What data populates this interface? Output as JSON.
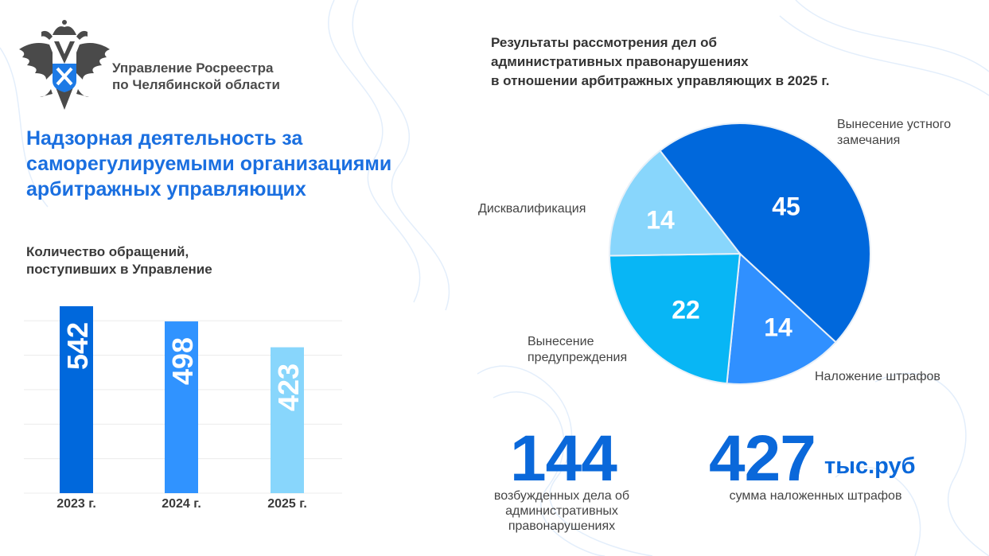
{
  "organization": {
    "line1": "Управление Росреестра",
    "line2": "по Челябинской области"
  },
  "header": {
    "title_lines": [
      "Надзорная деятельность за",
      "саморегулируемыми организациями",
      "арбитражных управляющих"
    ]
  },
  "colors": {
    "accent": "#1a6fe0",
    "dark_blue": "#0068dc",
    "mid_blue": "#3093ff",
    "cyan": "#08b6f5",
    "light_blue": "#88d6fc"
  },
  "chart_data": [
    {
      "type": "bar",
      "title": "Количество обращений, поступивших в Управление",
      "title_lines": [
        "Количество обращений,",
        "поступивших в Управление"
      ],
      "categories": [
        "2023 г.",
        "2024 г.",
        "2025 г."
      ],
      "values": [
        542,
        498,
        423
      ],
      "bar_colors": [
        "#0068dc",
        "#3093ff",
        "#88d6fc"
      ],
      "ylim": [
        0,
        542
      ],
      "grid": true,
      "data_labels": [
        "542",
        "498",
        "423"
      ]
    },
    {
      "type": "pie",
      "title": "Результаты рассмотрения дел об административных правонарушениях в отношении арбитражных управляющих в 2025 г.",
      "title_lines": [
        "Результаты рассмотрения дел об",
        "административных правонарушениях",
        "в отношении арбитражных управляющих в 2025 г."
      ],
      "slices": [
        {
          "label": "Вынесение устного замечания",
          "label_lines": [
            "Вынесение устного",
            "замечания"
          ],
          "value": 45,
          "color": "#0068dc"
        },
        {
          "label": "Наложение штрафов",
          "label_lines": [
            "Наложение штрафов"
          ],
          "value": 14,
          "color": "#3090ff"
        },
        {
          "label": "Вынесение предупреждения",
          "label_lines": [
            "Вынесение",
            "предупреждения"
          ],
          "value": 22,
          "color": "#08b6f5"
        },
        {
          "label": "Дисквалификация",
          "label_lines": [
            "Дисквалификация"
          ],
          "value": 14,
          "color": "#88d6fc"
        }
      ]
    }
  ],
  "stats": [
    {
      "value": "144",
      "unit": "",
      "caption_lines": [
        "возбужденных дела об",
        "административных",
        "правонарушениях"
      ]
    },
    {
      "value": "427",
      "unit": "тыс.руб",
      "caption_lines": [
        "сумма наложенных штрафов"
      ]
    }
  ]
}
